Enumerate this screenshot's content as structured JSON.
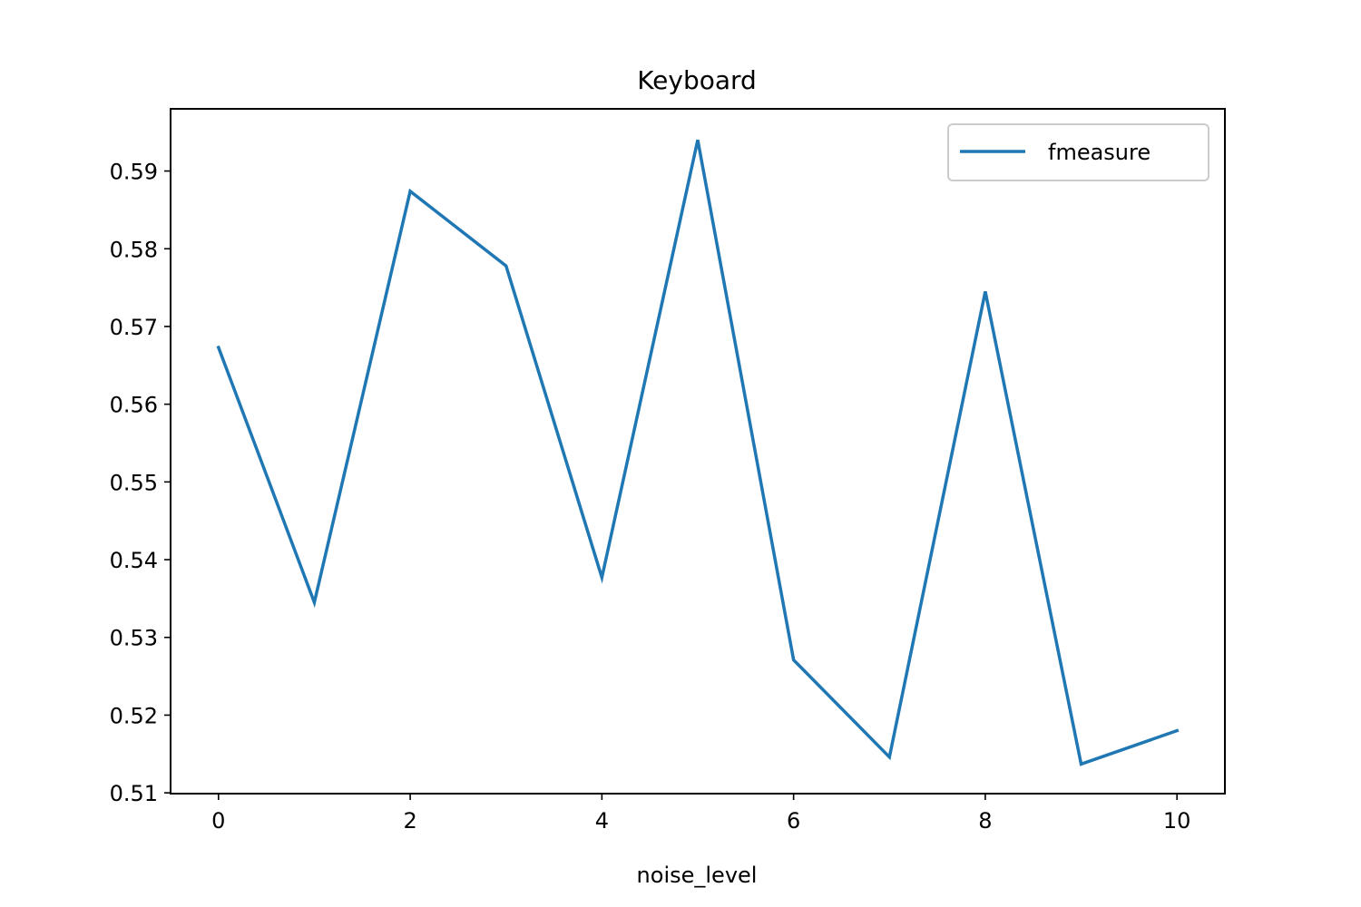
{
  "chart_data": {
    "type": "line",
    "title": "Keyboard",
    "xlabel": "noise_level",
    "ylabel": "",
    "x": [
      0,
      1,
      2,
      3,
      4,
      5,
      6,
      7,
      8,
      9,
      10
    ],
    "series": [
      {
        "name": "fmeasure",
        "color": "#1f77b4",
        "values": [
          0.5673,
          0.5345,
          0.5874,
          0.5778,
          0.5377,
          0.594,
          0.5271,
          0.5146,
          0.5745,
          0.5137,
          0.518
        ]
      }
    ],
    "xlim": [
      -0.5,
      10.5
    ],
    "ylim": [
      0.5099,
      0.598
    ],
    "xticks": [
      "0",
      "2",
      "4",
      "6",
      "8",
      "10"
    ],
    "yticks": [
      "0.51",
      "0.52",
      "0.53",
      "0.54",
      "0.55",
      "0.56",
      "0.57",
      "0.58",
      "0.59"
    ],
    "grid": false,
    "legend_position": "top-right"
  }
}
